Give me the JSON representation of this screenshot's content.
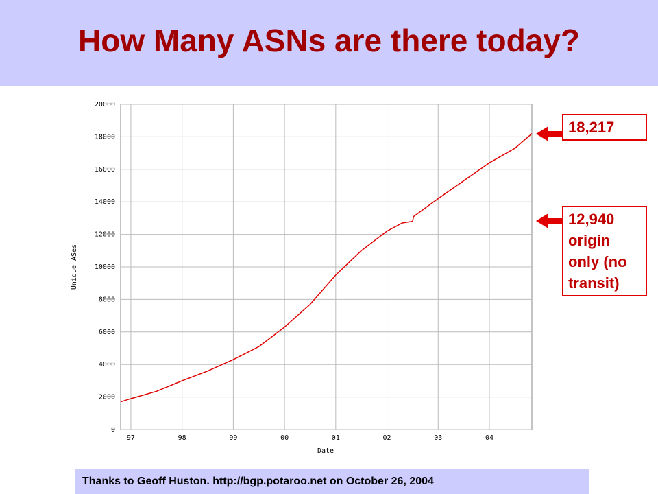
{
  "chart_data": {
    "type": "line",
    "title": "How Many ASNs are there today?",
    "x_label": "Date",
    "y_label": "Unique ASes",
    "x": [
      1996.8,
      1997.0,
      1997.5,
      1998.0,
      1998.5,
      1999.0,
      1999.5,
      2000.0,
      2000.5,
      2001.0,
      2001.5,
      2002.0,
      2002.3,
      2002.5,
      2002.52,
      2003.0,
      2003.5,
      2004.0,
      2004.5,
      2004.83
    ],
    "values": [
      1700,
      1900,
      2350,
      3000,
      3600,
      4300,
      5100,
      6300,
      7700,
      9500,
      11000,
      12200,
      12700,
      12800,
      13100,
      14200,
      15300,
      16400,
      17300,
      18200
    ],
    "color": "#e00000",
    "xlim": [
      1996.8,
      2004.83
    ],
    "xticks": [
      {
        "value": 1997,
        "label": "97"
      },
      {
        "value": 1998,
        "label": "98"
      },
      {
        "value": 1999,
        "label": "99"
      },
      {
        "value": 2000,
        "label": "00"
      },
      {
        "value": 2001,
        "label": "01"
      },
      {
        "value": 2002,
        "label": "02"
      },
      {
        "value": 2003,
        "label": "03"
      },
      {
        "value": 2004,
        "label": "04"
      }
    ],
    "ylim": [
      0,
      20000
    ],
    "yticks": [
      0,
      2000,
      4000,
      6000,
      8000,
      10000,
      12000,
      14000,
      16000,
      18000,
      20000
    ],
    "grid": true,
    "annotations": [
      "18,217",
      "12,940 origin only (no transit)"
    ],
    "source": "Thanks to Geoff Huston. http://bgp.potaroo.net on October 26, 2004"
  }
}
